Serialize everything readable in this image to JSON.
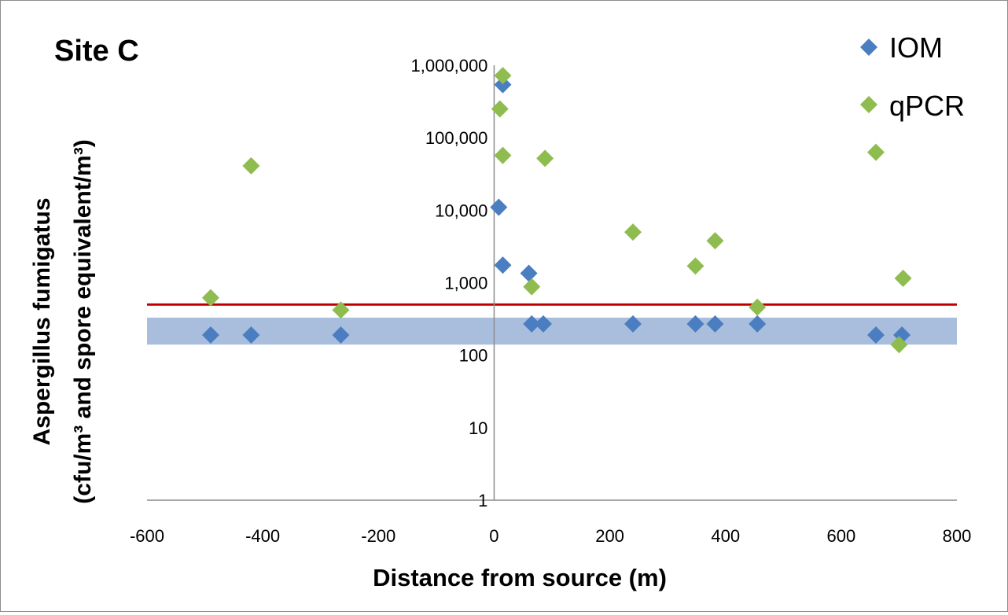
{
  "chart_data": {
    "type": "scatter",
    "title": "Site C",
    "xlabel": "Distance from source (m)",
    "ylabel_line1": "Aspergillus  fumigatus",
    "ylabel_line2": "(cfu/m³ and spore equivalent/m³)",
    "xlim": [
      -600,
      800
    ],
    "ylim": [
      1,
      1000000
    ],
    "yscale": "log",
    "x_ticks": [
      -600,
      -400,
      -200,
      0,
      200,
      400,
      600,
      800
    ],
    "x_tick_labels": [
      "-600",
      "-400",
      "-200",
      "0",
      "200",
      "400",
      "600",
      "800"
    ],
    "y_ticks": [
      1,
      10,
      100,
      1000,
      10000,
      100000,
      1000000
    ],
    "y_tick_labels": [
      "1",
      "10",
      "100",
      "1,000",
      "10,000",
      "100,000",
      "1,000,000"
    ],
    "grid": false,
    "legend_position": "top-right",
    "reference_line": {
      "y": 500,
      "color": "#c00000"
    },
    "shaded_band": {
      "y_range": [
        140,
        330
      ],
      "color": "#6f93c6"
    },
    "series": [
      {
        "name": "IOM",
        "color": "#4a7ec0",
        "points": [
          [
            -490,
            190
          ],
          [
            -420,
            190
          ],
          [
            -265,
            190
          ],
          [
            8,
            11000
          ],
          [
            15,
            540000
          ],
          [
            15,
            1750
          ],
          [
            60,
            1350
          ],
          [
            65,
            270
          ],
          [
            85,
            270
          ],
          [
            240,
            270
          ],
          [
            348,
            270
          ],
          [
            382,
            270
          ],
          [
            455,
            270
          ],
          [
            660,
            190
          ],
          [
            705,
            190
          ]
        ]
      },
      {
        "name": "qPCR",
        "color": "#8fbc4f",
        "points": [
          [
            -490,
            620
          ],
          [
            -420,
            41000
          ],
          [
            -265,
            420
          ],
          [
            10,
            250000
          ],
          [
            15,
            720000
          ],
          [
            15,
            57000
          ],
          [
            65,
            880
          ],
          [
            88,
            52000
          ],
          [
            240,
            5000
          ],
          [
            348,
            1700
          ],
          [
            382,
            3800
          ],
          [
            455,
            460
          ],
          [
            660,
            63000
          ],
          [
            700,
            140
          ],
          [
            707,
            1150
          ]
        ]
      }
    ]
  }
}
